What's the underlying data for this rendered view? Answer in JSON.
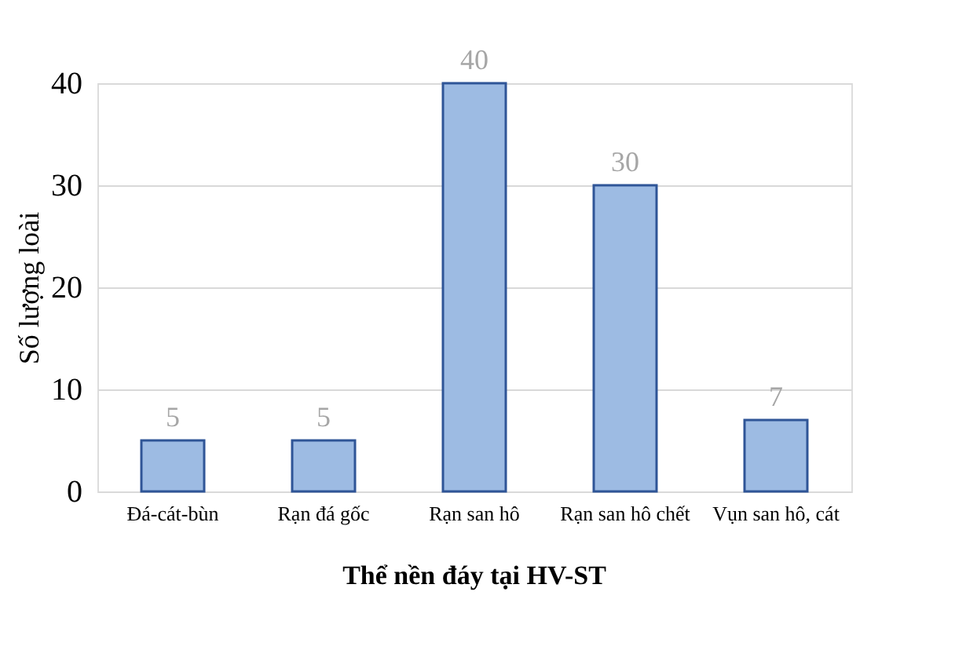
{
  "chart_data": {
    "type": "bar",
    "title": "Thể nền đáy tại  HV-ST",
    "ylabel": "Số lượng loài",
    "categories": [
      "Đá-cát-bùn",
      "Rạn đá gốc",
      "Rạn san hô",
      "Rạn san hô chết",
      "Vụn san hô, cát"
    ],
    "values": [
      5,
      5,
      40,
      30,
      7
    ],
    "color": "#9dbbe3",
    "ylim": [
      0,
      40
    ],
    "yticks": [
      0,
      10,
      20,
      30,
      40
    ],
    "grid": "y",
    "data_labels": true
  }
}
